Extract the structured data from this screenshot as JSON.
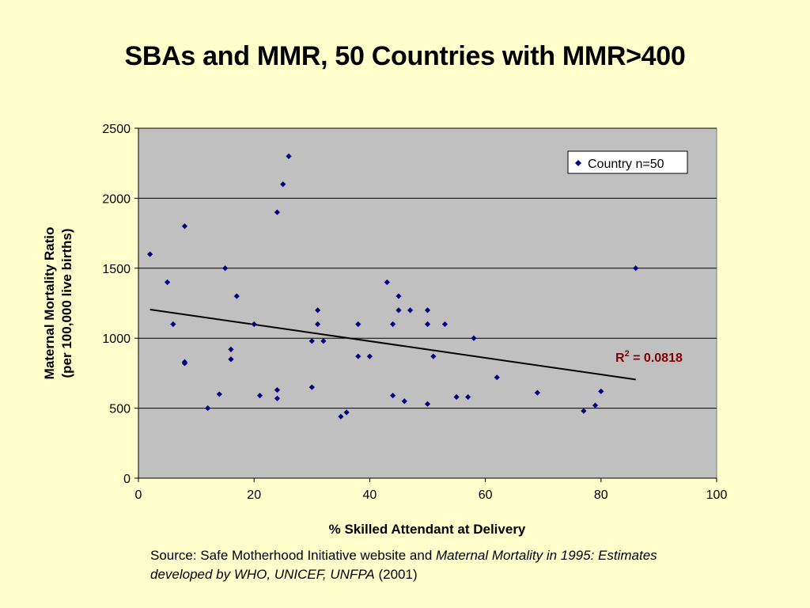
{
  "slide": {
    "title": "SBAs and MMR, 50 Countries with MMR>400"
  },
  "source": {
    "prefix": "Source: Safe Motherhood Initiative website and ",
    "italic_title": "Maternal Mortality in 1995: Estimates developed by WHO, UNICEF, UNFPA",
    "suffix": " (2001)"
  },
  "chart_data": {
    "type": "scatter",
    "title": "SBAs and MMR, 50 Countries with MMR>400",
    "xlabel": "% Skilled Attendant at Delivery",
    "ylabel_line1": "Maternal Mortality Ratio",
    "ylabel_line2": "(per 100,000 live births)",
    "xlim": [
      0,
      100
    ],
    "ylim": [
      0,
      2500
    ],
    "xticks": [
      0,
      20,
      40,
      60,
      80,
      100
    ],
    "yticks": [
      0,
      500,
      1000,
      1500,
      2000,
      2500
    ],
    "grid": "horizontal",
    "plot_background": "#c0c0c0",
    "marker_color": "#000080",
    "trend_color": "#000000",
    "r2_color": "#800000",
    "legend_position": "top-right",
    "series": [
      {
        "name": "Country n=50",
        "points": [
          [
            2,
            1600
          ],
          [
            5,
            1400
          ],
          [
            6,
            1100
          ],
          [
            8,
            1800
          ],
          [
            8,
            830
          ],
          [
            8,
            820
          ],
          [
            12,
            500
          ],
          [
            14,
            600
          ],
          [
            15,
            1500
          ],
          [
            16,
            920
          ],
          [
            16,
            850
          ],
          [
            17,
            1300
          ],
          [
            20,
            1100
          ],
          [
            21,
            590
          ],
          [
            24,
            1900
          ],
          [
            24,
            630
          ],
          [
            24,
            570
          ],
          [
            25,
            2100
          ],
          [
            26,
            2300
          ],
          [
            30,
            980
          ],
          [
            30,
            650
          ],
          [
            31,
            1200
          ],
          [
            31,
            1100
          ],
          [
            32,
            980
          ],
          [
            35,
            440
          ],
          [
            36,
            470
          ],
          [
            38,
            1100
          ],
          [
            38,
            870
          ],
          [
            40,
            870
          ],
          [
            43,
            1400
          ],
          [
            44,
            1100
          ],
          [
            44,
            590
          ],
          [
            45,
            1300
          ],
          [
            45,
            1200
          ],
          [
            46,
            550
          ],
          [
            47,
            1200
          ],
          [
            50,
            1200
          ],
          [
            50,
            1100
          ],
          [
            50,
            530
          ],
          [
            51,
            870
          ],
          [
            53,
            1100
          ],
          [
            55,
            580
          ],
          [
            57,
            580
          ],
          [
            58,
            1000
          ],
          [
            62,
            720
          ],
          [
            69,
            610
          ],
          [
            77,
            480
          ],
          [
            79,
            520
          ],
          [
            80,
            620
          ],
          [
            86,
            1500
          ]
        ]
      }
    ],
    "trendline": {
      "x_start": 2,
      "y_start": 1205,
      "x_end": 86,
      "y_end": 705
    },
    "r2_label": {
      "prefix": "R",
      "superscript": "2",
      "value_text": " = 0.0818"
    }
  }
}
